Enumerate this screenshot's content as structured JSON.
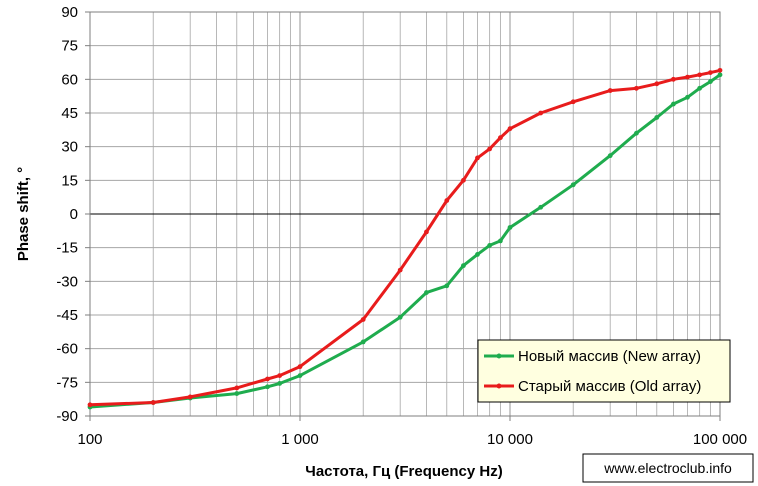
{
  "chart_data": {
    "type": "line",
    "xscale": "log",
    "xlim": [
      100,
      100000
    ],
    "ylim": [
      -90,
      90
    ],
    "xlabel": "Частота, Гц (Frequency Hz)",
    "ylabel": "Phase shift, °",
    "grid": true,
    "legend_position": "bottom-right",
    "x_ticks": [
      {
        "value": 100,
        "label": "100"
      },
      {
        "value": 1000,
        "label": "1 000"
      },
      {
        "value": 10000,
        "label": "10 000"
      },
      {
        "value": 100000,
        "label": "100 000"
      }
    ],
    "y_ticks": [
      {
        "value": 90,
        "label": "90"
      },
      {
        "value": 75,
        "label": "75"
      },
      {
        "value": 60,
        "label": "60"
      },
      {
        "value": 45,
        "label": "45"
      },
      {
        "value": 30,
        "label": "30"
      },
      {
        "value": 15,
        "label": "15"
      },
      {
        "value": 0,
        "label": "0"
      },
      {
        "value": -15,
        "label": "-15"
      },
      {
        "value": -30,
        "label": "-30"
      },
      {
        "value": -45,
        "label": "-45"
      },
      {
        "value": -60,
        "label": "-60"
      },
      {
        "value": -75,
        "label": "-75"
      },
      {
        "value": -90,
        "label": "-90"
      }
    ],
    "series": [
      {
        "name": "Новый массив (New array)",
        "color": "#1fac4e",
        "points": [
          [
            100,
            -86
          ],
          [
            200,
            -84
          ],
          [
            300,
            -82
          ],
          [
            500,
            -80
          ],
          [
            700,
            -77
          ],
          [
            800,
            -75.5
          ],
          [
            1000,
            -72
          ],
          [
            2000,
            -57
          ],
          [
            3000,
            -46
          ],
          [
            4000,
            -35
          ],
          [
            5000,
            -32
          ],
          [
            6000,
            -23
          ],
          [
            7000,
            -18
          ],
          [
            8000,
            -14
          ],
          [
            9000,
            -12
          ],
          [
            10000,
            -6
          ],
          [
            14000,
            3
          ],
          [
            20000,
            13
          ],
          [
            30000,
            26
          ],
          [
            40000,
            36
          ],
          [
            50000,
            43
          ],
          [
            60000,
            49
          ],
          [
            70000,
            52
          ],
          [
            80000,
            56
          ],
          [
            90000,
            59
          ],
          [
            100000,
            62
          ]
        ]
      },
      {
        "name": "Старый массив (Old array)",
        "color": "#e81c1c",
        "points": [
          [
            100,
            -85
          ],
          [
            200,
            -84
          ],
          [
            300,
            -81.5
          ],
          [
            500,
            -77.5
          ],
          [
            700,
            -73.5
          ],
          [
            800,
            -72
          ],
          [
            1000,
            -68
          ],
          [
            2000,
            -47
          ],
          [
            3000,
            -25
          ],
          [
            4000,
            -8
          ],
          [
            5000,
            6
          ],
          [
            6000,
            15
          ],
          [
            7000,
            25
          ],
          [
            8000,
            29
          ],
          [
            9000,
            34
          ],
          [
            10000,
            38
          ],
          [
            14000,
            45
          ],
          [
            20000,
            50
          ],
          [
            30000,
            55
          ],
          [
            40000,
            56
          ],
          [
            50000,
            58
          ],
          [
            60000,
            60
          ],
          [
            70000,
            61
          ],
          [
            80000,
            62
          ],
          [
            90000,
            63
          ],
          [
            100000,
            64
          ]
        ]
      }
    ]
  },
  "watermark": "www.electroclub.info",
  "colors": {
    "grid": "#a6a6a6",
    "zero_line": "#000000",
    "new_array": "#1fac4e",
    "old_array": "#e81c1c"
  }
}
